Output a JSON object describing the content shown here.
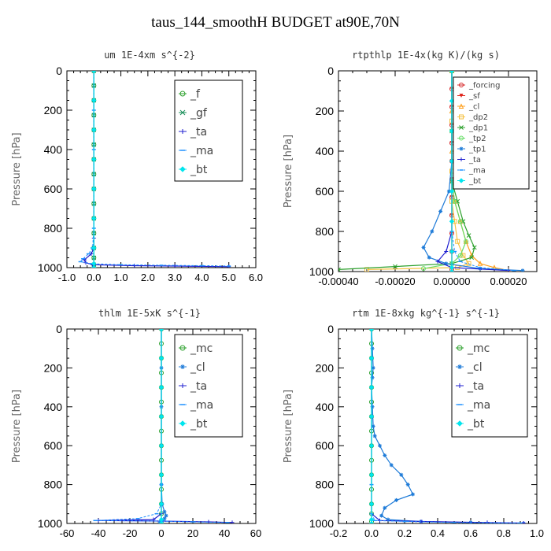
{
  "title": "taus_144_smoothH  BUDGET at90E,70N",
  "chart_data": [
    {
      "type": "line",
      "title": "um  1E-4xm s^{-2}",
      "ylabel": "Pressure [hPa]",
      "xlim": [
        -1.0,
        6.0
      ],
      "ylim": [
        1000,
        0
      ],
      "xticks": [
        -1.0,
        0.0,
        1.0,
        2.0,
        3.0,
        4.0,
        5.0,
        6.0
      ],
      "xtick_labels": [
        "-1.0",
        "0.0",
        "1.0",
        "2.0",
        "3.0",
        "4.0",
        "5.0",
        "6.0"
      ],
      "yticks": [
        0,
        200,
        400,
        600,
        800,
        1000
      ],
      "ytick_labels": [
        "0",
        "200",
        "400",
        "600",
        "800",
        "1000"
      ],
      "legend": "top-right",
      "series": [
        {
          "name": "_f",
          "color": "#2ca02c",
          "marker": "o",
          "x": [
            0,
            0,
            0,
            0,
            0,
            0,
            0,
            0,
            0,
            0,
            0,
            0,
            0,
            0,
            0
          ],
          "y": [
            0,
            75,
            150,
            225,
            300,
            375,
            450,
            525,
            600,
            675,
            750,
            825,
            900,
            950,
            985
          ]
        },
        {
          "name": "_gf",
          "color": "#1a8f5a",
          "marker": "x",
          "x": [
            0,
            0,
            0,
            0,
            0,
            0,
            0,
            0,
            0,
            0,
            0,
            0,
            0,
            0,
            0
          ],
          "y": [
            0,
            75,
            150,
            225,
            300,
            375,
            450,
            525,
            600,
            675,
            750,
            825,
            900,
            950,
            985
          ]
        },
        {
          "name": "_ta",
          "color": "#1f1fd0",
          "marker": "+",
          "x": [
            0,
            0,
            0,
            0,
            0,
            0,
            0,
            0,
            -0.1,
            -0.35,
            -0.3,
            -0.05,
            1.5,
            3.0,
            5.0
          ],
          "y": [
            0,
            150,
            300,
            450,
            600,
            750,
            850,
            900,
            930,
            960,
            975,
            985,
            990,
            992,
            995
          ]
        },
        {
          "name": "_ma",
          "color": "#1e90ff",
          "marker": "-",
          "x": [
            0,
            0,
            0,
            0,
            0,
            -0.05,
            -0.2,
            -0.4,
            -0.5,
            -0.1,
            1.0,
            2.5,
            4.0,
            5.0
          ],
          "y": [
            0,
            200,
            400,
            600,
            800,
            900,
            930,
            955,
            970,
            980,
            985,
            988,
            990,
            992
          ]
        },
        {
          "name": "_bt",
          "color": "#00e5ee",
          "marker": "d",
          "x": [
            0,
            0,
            0,
            0,
            0,
            0,
            0,
            0,
            0
          ],
          "y": [
            0,
            150,
            300,
            450,
            600,
            750,
            900,
            980,
            1000
          ]
        }
      ]
    },
    {
      "type": "line",
      "title": "rtpthlp  1E-4x(kg K)/(kg s)",
      "ylabel": "Pressure [hPa]",
      "xlim": [
        -0.0004,
        0.0003
      ],
      "ylim": [
        1000,
        0
      ],
      "xticks": [
        -0.0004,
        -0.0002,
        0.0,
        0.0002
      ],
      "xtick_labels": [
        "-0.00040",
        "-0.00020",
        "0.00000",
        "0.00020"
      ],
      "yticks": [
        0,
        200,
        400,
        600,
        800,
        1000
      ],
      "ytick_labels": [
        "0",
        "200",
        "400",
        "600",
        "800",
        "1000"
      ],
      "legend": "top-right",
      "series": [
        {
          "name": "_forcing",
          "color": "#d62728",
          "marker": "o",
          "x": [
            0,
            0,
            0,
            0,
            0,
            0,
            0,
            0,
            0,
            0,
            0,
            0
          ],
          "y": [
            0,
            90,
            180,
            270,
            360,
            450,
            540,
            630,
            720,
            810,
            900,
            990
          ]
        },
        {
          "name": "_sf",
          "color": "#e0261c",
          "marker": "v",
          "x": [
            0,
            0,
            0,
            0,
            0,
            0,
            0,
            0,
            0,
            0,
            0,
            0
          ],
          "y": [
            0,
            90,
            180,
            270,
            360,
            450,
            540,
            630,
            720,
            810,
            900,
            990
          ]
        },
        {
          "name": "_cl",
          "color": "#ff9f1c",
          "marker": "^",
          "x": [
            0,
            0,
            0,
            0,
            1e-05,
            3e-05,
            5e-05,
            7e-05,
            0.0001,
            0.00015,
            0.0002
          ],
          "y": [
            0,
            200,
            400,
            550,
            650,
            750,
            850,
            920,
            960,
            980,
            995
          ]
        },
        {
          "name": "_dp2",
          "color": "#f5c242",
          "marker": "s",
          "x": [
            0,
            0,
            0,
            0,
            1e-05,
            2e-05,
            4e-05,
            6e-05,
            2e-05,
            -0.0003
          ],
          "y": [
            0,
            250,
            500,
            650,
            750,
            850,
            920,
            960,
            980,
            990
          ]
        },
        {
          "name": "_dp1",
          "color": "#2ca02c",
          "marker": "x",
          "x": [
            0,
            0,
            0,
            2e-05,
            4e-05,
            6e-05,
            8e-05,
            7e-05,
            0.0,
            -0.0002,
            -0.0004
          ],
          "y": [
            0,
            300,
            550,
            650,
            750,
            820,
            880,
            930,
            960,
            975,
            990
          ]
        },
        {
          "name": "_tp2",
          "color": "#66dd66",
          "marker": "o",
          "x": [
            0,
            0,
            0,
            1e-05,
            3e-05,
            5e-05,
            3e-05,
            0,
            -0.0001
          ],
          "y": [
            0,
            300,
            550,
            650,
            750,
            850,
            920,
            960,
            985
          ]
        },
        {
          "name": "_tp1",
          "color": "#1e7bd8",
          "marker": "*",
          "x": [
            0,
            0,
            -1e-05,
            -4e-05,
            -7e-05,
            -0.0001,
            -8e-05,
            -2e-05,
            0.0001,
            0.00025
          ],
          "y": [
            0,
            450,
            600,
            700,
            800,
            880,
            930,
            960,
            985,
            995
          ]
        },
        {
          "name": "_ta",
          "color": "#1f1fd0",
          "marker": "+",
          "x": [
            0,
            0,
            0,
            0,
            -2e-05,
            -5e-05,
            0,
            0.0002
          ],
          "y": [
            0,
            300,
            600,
            800,
            900,
            950,
            980,
            995
          ]
        },
        {
          "name": "_ma",
          "color": "#1e90ff",
          "marker": "-",
          "x": [
            0,
            0,
            0,
            0,
            1e-05,
            3e-05,
            0.0001,
            0.00022
          ],
          "y": [
            0,
            300,
            600,
            800,
            900,
            950,
            980,
            995
          ]
        },
        {
          "name": "_bt",
          "color": "#00e5ee",
          "marker": "d",
          "x": [
            0,
            0,
            0,
            0,
            0,
            0,
            0,
            0,
            0
          ],
          "y": [
            0,
            150,
            300,
            450,
            600,
            750,
            900,
            980,
            1000
          ]
        }
      ]
    },
    {
      "type": "line",
      "title": "thlm  1E-5xK s^{-1}",
      "ylabel": "Pressure [hPa]",
      "xlim": [
        -60,
        60
      ],
      "ylim": [
        1000,
        0
      ],
      "xticks": [
        -60,
        -40,
        -20,
        0,
        20,
        40,
        60
      ],
      "xtick_labels": [
        "-60",
        "-40",
        "-20",
        "0",
        "20",
        "40",
        "60"
      ],
      "yticks": [
        0,
        200,
        400,
        600,
        800,
        1000
      ],
      "ytick_labels": [
        "0",
        "200",
        "400",
        "600",
        "800",
        "1000"
      ],
      "legend": "top-right",
      "series": [
        {
          "name": "_mc",
          "color": "#2ca02c",
          "marker": "o",
          "x": [
            0,
            0,
            0,
            0,
            0,
            0,
            0,
            0,
            0,
            0,
            0,
            0,
            0,
            0,
            0
          ],
          "y": [
            0,
            75,
            150,
            225,
            300,
            375,
            450,
            525,
            600,
            675,
            750,
            825,
            900,
            950,
            990
          ]
        },
        {
          "name": "_cl",
          "color": "#1e7bd8",
          "marker": "*",
          "x": [
            0,
            0,
            0,
            0,
            0,
            0.5,
            2,
            3,
            2,
            0.5,
            -1
          ],
          "y": [
            0,
            200,
            400,
            600,
            800,
            900,
            940,
            960,
            975,
            985,
            995
          ]
        },
        {
          "name": "_ta",
          "color": "#1f1fd0",
          "marker": "+",
          "x": [
            0,
            0,
            0,
            0,
            0,
            -5,
            -40,
            0,
            30,
            45
          ],
          "y": [
            0,
            300,
            600,
            800,
            950,
            980,
            985,
            988,
            992,
            995
          ]
        },
        {
          "name": "_ma",
          "color": "#1e90ff",
          "marker": "-",
          "x": [
            0,
            0,
            0,
            0,
            0,
            -3,
            -15,
            -42,
            0,
            20,
            42
          ],
          "y": [
            0,
            300,
            600,
            800,
            900,
            950,
            975,
            985,
            988,
            992,
            995
          ]
        },
        {
          "name": "_bt",
          "color": "#00e5ee",
          "marker": "d",
          "x": [
            0,
            0,
            0,
            0,
            0,
            0,
            0,
            0,
            0
          ],
          "y": [
            0,
            150,
            300,
            450,
            600,
            750,
            900,
            980,
            1000
          ]
        }
      ]
    },
    {
      "type": "line",
      "title": "rtm  1E-8xkg kg^{-1} s^{-1}",
      "ylabel": "Pressure [hPa]",
      "xlim": [
        -0.2,
        1.0
      ],
      "ylim": [
        1000,
        0
      ],
      "xticks": [
        -0.2,
        0.0,
        0.2,
        0.4,
        0.6,
        0.8,
        1.0
      ],
      "xtick_labels": [
        "-0.2",
        "0.0",
        "0.2",
        "0.4",
        "0.6",
        "0.8",
        "1.0"
      ],
      "yticks": [
        0,
        200,
        400,
        600,
        800,
        1000
      ],
      "ytick_labels": [
        "0",
        "200",
        "400",
        "600",
        "800",
        "1000"
      ],
      "legend": "top-right",
      "series": [
        {
          "name": "_mc",
          "color": "#2ca02c",
          "marker": "o",
          "x": [
            0,
            0,
            0,
            0,
            0,
            0,
            0,
            0,
            0,
            0,
            0,
            0,
            0,
            0,
            0
          ],
          "y": [
            0,
            75,
            150,
            225,
            300,
            375,
            450,
            525,
            600,
            675,
            750,
            825,
            900,
            950,
            990
          ]
        },
        {
          "name": "_cl",
          "color": "#1e7bd8",
          "marker": "*",
          "x": [
            0,
            0.005,
            0.01,
            0.005,
            0.0,
            0.005,
            0.01,
            0.02,
            0.05,
            0.08,
            0.12,
            0.18,
            0.22,
            0.25,
            0.15,
            0.08,
            0.06,
            0.1,
            0.3,
            0.6,
            0.92
          ],
          "y": [
            0,
            100,
            200,
            250,
            300,
            400,
            500,
            550,
            600,
            650,
            700,
            750,
            800,
            850,
            880,
            920,
            960,
            980,
            990,
            995,
            1000
          ]
        },
        {
          "name": "_ta",
          "color": "#1f1fd0",
          "marker": "+",
          "x": [
            0,
            0,
            0,
            0,
            0,
            0.05,
            0.3,
            0.7,
            0.92
          ],
          "y": [
            0,
            300,
            600,
            800,
            950,
            985,
            990,
            995,
            998
          ]
        },
        {
          "name": "_ma",
          "color": "#1e90ff",
          "marker": "-",
          "x": [
            0,
            0,
            0,
            0,
            0,
            0.02,
            0.2,
            0.5,
            0.9
          ],
          "y": [
            0,
            300,
            600,
            800,
            950,
            985,
            990,
            995,
            998
          ]
        },
        {
          "name": "_bt",
          "color": "#00e5ee",
          "marker": "d",
          "x": [
            0,
            0,
            0,
            0,
            0,
            0,
            0,
            0,
            0
          ],
          "y": [
            0,
            150,
            300,
            450,
            600,
            750,
            900,
            980,
            1000
          ]
        }
      ]
    }
  ]
}
